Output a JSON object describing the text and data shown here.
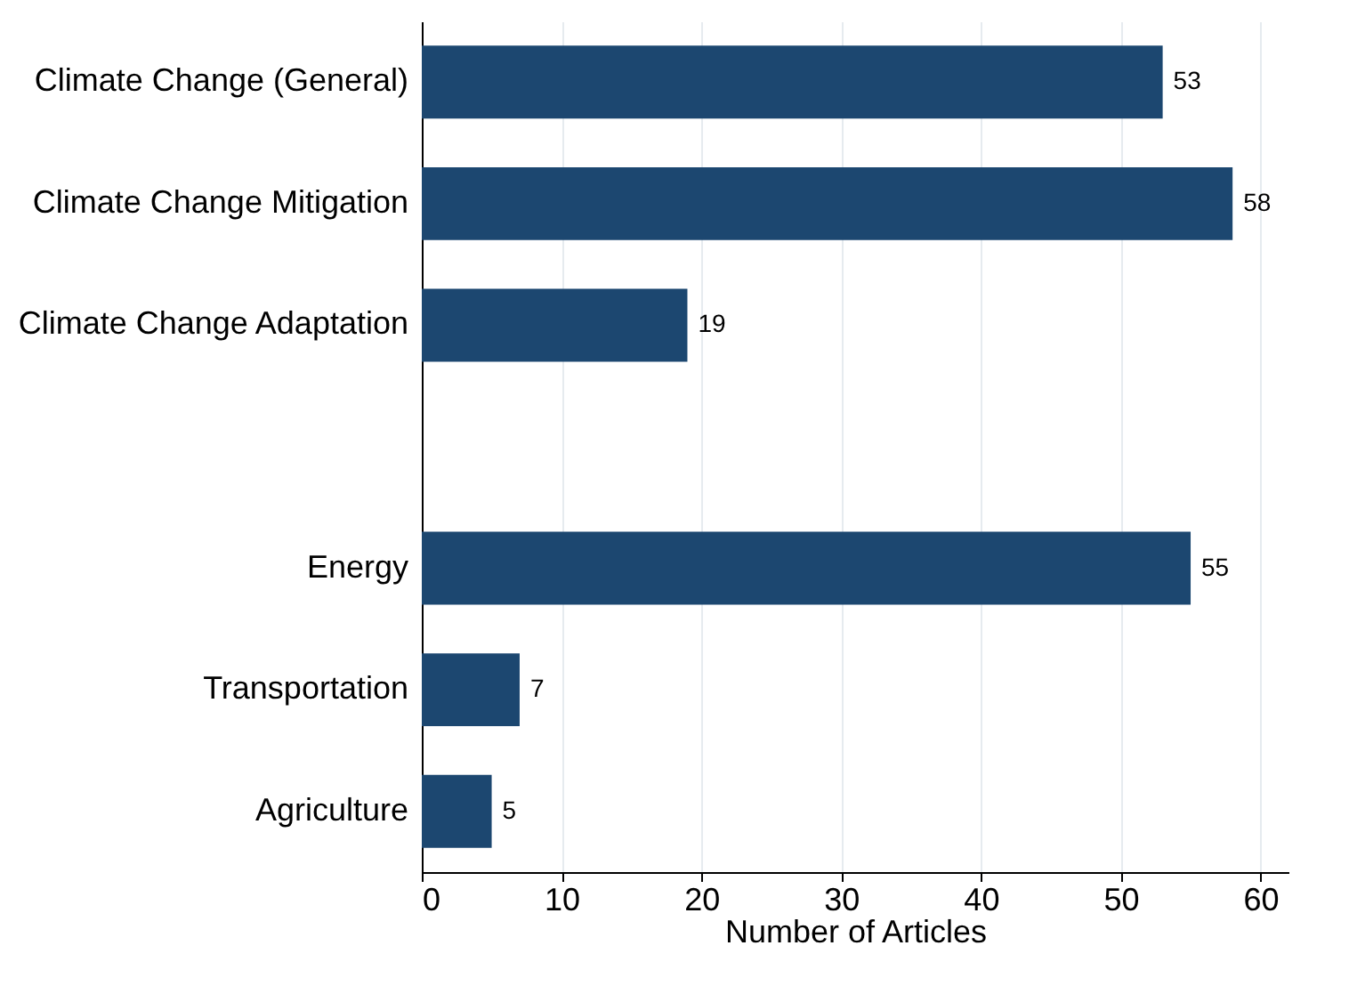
{
  "chart_data": {
    "type": "bar",
    "orientation": "horizontal",
    "xlabel": "Number of Articles",
    "categories": [
      "Climate Change (General)",
      "Climate Change Mitigation",
      "Climate Change Adaptation",
      null,
      "Energy",
      "Transportation",
      "Agriculture"
    ],
    "values": [
      53,
      58,
      19,
      null,
      55,
      7,
      5
    ],
    "color": "#1c4770",
    "xlim": [
      0,
      62
    ],
    "xticks": [
      0,
      10,
      20,
      30,
      40,
      50,
      60
    ],
    "grid": "x",
    "data_labels": true
  }
}
